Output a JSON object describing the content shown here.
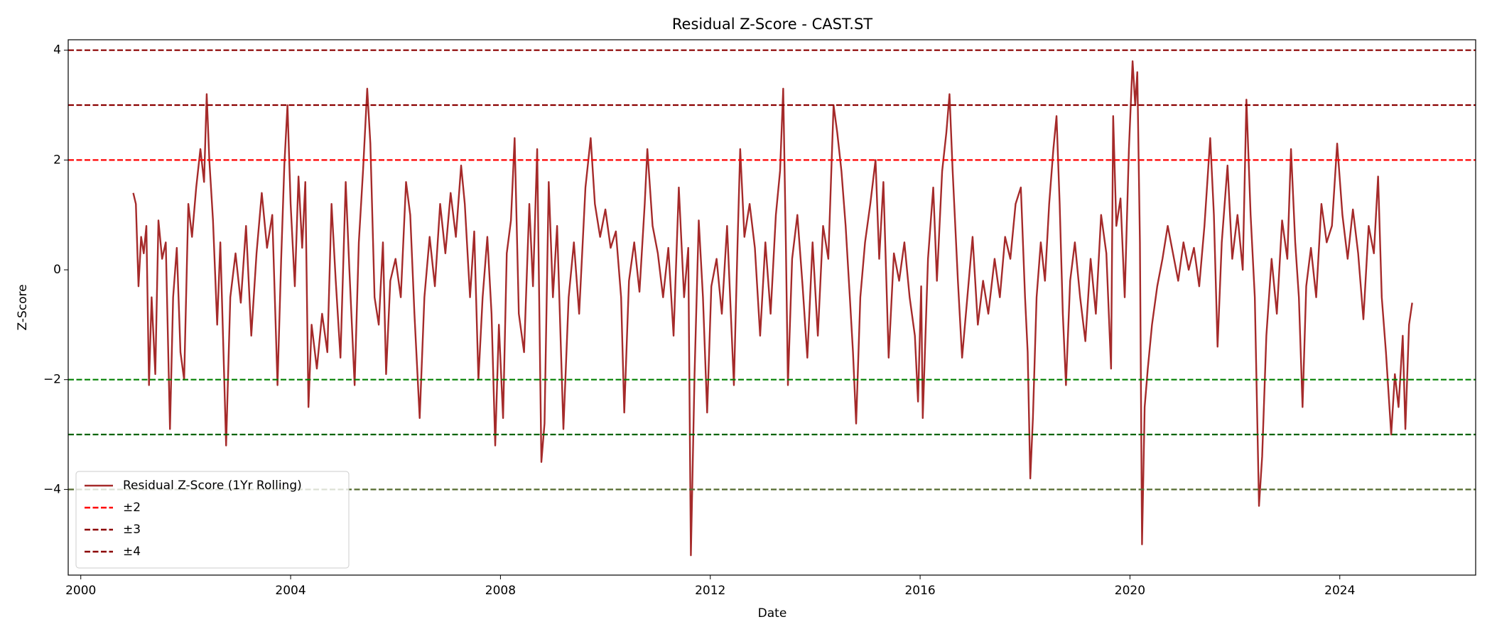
{
  "chart_data": {
    "type": "line",
    "title": "Residual Z-Score - CAST.ST",
    "x_label": "Date",
    "y_label": "Z-Score",
    "xlim": [
      1999.76,
      2026.59
    ],
    "ylim": [
      -5.56,
      4.19
    ],
    "xticks": [
      2000,
      2004,
      2008,
      2012,
      2016,
      2020,
      2024
    ],
    "yticks": [
      {
        "value": -4,
        "label": "−4"
      },
      {
        "value": -2,
        "label": "−2"
      },
      0,
      2,
      4
    ],
    "grid": false,
    "legend": "lower left",
    "x": [
      2001.0,
      2001.05,
      2001.1,
      2001.15,
      2001.2,
      2001.25,
      2001.3,
      2001.35,
      2001.42,
      2001.48,
      2001.55,
      2001.62,
      2001.7,
      2001.76,
      2001.83,
      2001.9,
      2001.97,
      2002.05,
      2002.12,
      2002.2,
      2002.28,
      2002.35,
      2002.4,
      2002.45,
      2002.52,
      2002.6,
      2002.66,
      2002.72,
      2002.77,
      2002.85,
      2002.95,
      2003.05,
      2003.15,
      2003.25,
      2003.35,
      2003.45,
      2003.55,
      2003.65,
      2003.75,
      2003.82,
      2003.88,
      2003.94,
      2004.0,
      2004.08,
      2004.15,
      2004.22,
      2004.28,
      2004.34,
      2004.4,
      2004.5,
      2004.6,
      2004.7,
      2004.78,
      2004.86,
      2004.95,
      2005.05,
      2005.12,
      2005.22,
      2005.3,
      2005.38,
      2005.46,
      2005.52,
      2005.6,
      2005.68,
      2005.76,
      2005.82,
      2005.9,
      2006.0,
      2006.1,
      2006.2,
      2006.28,
      2006.36,
      2006.46,
      2006.55,
      2006.65,
      2006.75,
      2006.85,
      2006.95,
      2007.05,
      2007.15,
      2007.25,
      2007.32,
      2007.42,
      2007.5,
      2007.58,
      2007.66,
      2007.75,
      2007.83,
      2007.9,
      2007.97,
      2008.05,
      2008.12,
      2008.2,
      2008.27,
      2008.35,
      2008.45,
      2008.55,
      2008.62,
      2008.7,
      2008.78,
      2008.84,
      2008.92,
      2009.0,
      2009.08,
      2009.2,
      2009.3,
      2009.4,
      2009.5,
      2009.62,
      2009.72,
      2009.8,
      2009.9,
      2010.0,
      2010.1,
      2010.2,
      2010.3,
      2010.36,
      2010.45,
      2010.55,
      2010.65,
      2010.75,
      2010.8,
      2010.9,
      2011.0,
      2011.1,
      2011.2,
      2011.3,
      2011.4,
      2011.5,
      2011.58,
      2011.63,
      2011.7,
      2011.78,
      2011.86,
      2011.94,
      2012.02,
      2012.12,
      2012.22,
      2012.32,
      2012.45,
      2012.52,
      2012.57,
      2012.65,
      2012.75,
      2012.85,
      2012.95,
      2013.05,
      2013.15,
      2013.25,
      2013.33,
      2013.39,
      2013.44,
      2013.48,
      2013.56,
      2013.66,
      2013.76,
      2013.85,
      2013.95,
      2014.05,
      2014.15,
      2014.25,
      2014.35,
      2014.42,
      2014.5,
      2014.58,
      2014.66,
      2014.72,
      2014.78,
      2014.86,
      2014.95,
      2015.05,
      2015.15,
      2015.22,
      2015.3,
      2015.4,
      2015.5,
      2015.6,
      2015.7,
      2015.8,
      2015.9,
      2015.96,
      2016.02,
      2016.05,
      2016.15,
      2016.25,
      2016.32,
      2016.42,
      2016.5,
      2016.56,
      2016.62,
      2016.72,
      2016.8,
      2016.9,
      2017.0,
      2017.1,
      2017.2,
      2017.3,
      2017.42,
      2017.52,
      2017.62,
      2017.72,
      2017.82,
      2017.92,
      2018.0,
      2018.05,
      2018.1,
      2018.15,
      2018.22,
      2018.3,
      2018.38,
      2018.46,
      2018.54,
      2018.6,
      2018.66,
      2018.72,
      2018.78,
      2018.86,
      2018.95,
      2019.05,
      2019.15,
      2019.25,
      2019.35,
      2019.45,
      2019.55,
      2019.64,
      2019.68,
      2019.74,
      2019.82,
      2019.9,
      2019.98,
      2020.05,
      2020.1,
      2020.14,
      2020.19,
      2020.23,
      2020.28,
      2020.34,
      2020.42,
      2020.52,
      2020.62,
      2020.72,
      2020.82,
      2020.92,
      2021.02,
      2021.12,
      2021.22,
      2021.32,
      2021.42,
      2021.53,
      2021.6,
      2021.67,
      2021.75,
      2021.86,
      2021.95,
      2022.05,
      2022.15,
      2022.22,
      2022.3,
      2022.38,
      2022.46,
      2022.52,
      2022.6,
      2022.7,
      2022.8,
      2022.9,
      2023.0,
      2023.07,
      2023.15,
      2023.22,
      2023.29,
      2023.36,
      2023.45,
      2023.55,
      2023.65,
      2023.75,
      2023.85,
      2023.95,
      2024.05,
      2024.15,
      2024.25,
      2024.35,
      2024.45,
      2024.55,
      2024.65,
      2024.73,
      2024.8,
      2024.88,
      2024.98,
      2025.05,
      2025.12,
      2025.2,
      2025.25,
      2025.32,
      2025.38
    ],
    "series": [
      {
        "name": "Residual Z-Score (1Yr Rolling)",
        "color": "#a52a2a",
        "values": [
          1.4,
          1.2,
          -0.3,
          0.6,
          0.3,
          0.8,
          -2.1,
          -0.5,
          -1.9,
          0.9,
          0.2,
          0.5,
          -2.9,
          -0.5,
          0.4,
          -1.5,
          -2.0,
          1.2,
          0.6,
          1.5,
          2.2,
          1.6,
          3.2,
          2.0,
          0.9,
          -1.0,
          0.5,
          -1.5,
          -3.2,
          -0.5,
          0.3,
          -0.6,
          0.8,
          -1.2,
          0.3,
          1.4,
          0.4,
          1.0,
          -2.1,
          0.2,
          1.9,
          3.0,
          1.2,
          -0.3,
          1.7,
          0.4,
          1.6,
          -2.5,
          -1.0,
          -1.8,
          -0.8,
          -1.5,
          1.2,
          -0.2,
          -1.6,
          1.6,
          0.0,
          -2.1,
          0.5,
          1.8,
          3.3,
          2.3,
          -0.5,
          -1.0,
          0.5,
          -1.9,
          -0.2,
          0.2,
          -0.5,
          1.6,
          1.0,
          -0.8,
          -2.7,
          -0.5,
          0.6,
          -0.3,
          1.2,
          0.3,
          1.4,
          0.6,
          1.9,
          1.2,
          -0.5,
          0.7,
          -2.0,
          -0.5,
          0.6,
          -0.8,
          -3.2,
          -1.0,
          -2.7,
          0.3,
          0.9,
          2.4,
          -0.8,
          -1.5,
          1.2,
          -0.3,
          2.2,
          -3.5,
          -2.8,
          1.6,
          -0.5,
          0.8,
          -2.9,
          -0.5,
          0.5,
          -0.8,
          1.5,
          2.4,
          1.2,
          0.6,
          1.1,
          0.4,
          0.7,
          -0.5,
          -2.6,
          -0.2,
          0.5,
          -0.4,
          1.2,
          2.2,
          0.8,
          0.3,
          -0.5,
          0.4,
          -1.2,
          1.5,
          -0.5,
          0.4,
          -5.2,
          -1.9,
          0.9,
          -0.5,
          -2.6,
          -0.3,
          0.2,
          -0.8,
          0.8,
          -2.1,
          0.5,
          2.2,
          0.6,
          1.2,
          0.4,
          -1.2,
          0.5,
          -0.8,
          1.0,
          1.8,
          3.3,
          0.5,
          -2.1,
          0.2,
          1.0,
          -0.3,
          -1.6,
          0.5,
          -1.2,
          0.8,
          0.2,
          3.0,
          2.5,
          1.8,
          0.8,
          -0.5,
          -1.5,
          -2.8,
          -0.5,
          0.5,
          1.2,
          2.0,
          0.2,
          1.6,
          -1.6,
          0.3,
          -0.2,
          0.5,
          -0.5,
          -1.2,
          -2.4,
          -0.3,
          -2.7,
          0.2,
          1.5,
          -0.2,
          1.8,
          2.5,
          3.2,
          1.8,
          -0.2,
          -1.6,
          -0.5,
          0.6,
          -1.0,
          -0.2,
          -0.8,
          0.2,
          -0.5,
          0.6,
          0.2,
          1.2,
          1.5,
          -0.5,
          -1.5,
          -3.8,
          -2.7,
          -0.5,
          0.5,
          -0.2,
          1.2,
          2.2,
          2.8,
          1.2,
          -0.8,
          -2.1,
          -0.2,
          0.5,
          -0.5,
          -1.3,
          0.2,
          -0.8,
          1.0,
          0.3,
          -1.8,
          2.8,
          0.8,
          1.3,
          -0.5,
          2.2,
          3.8,
          3.0,
          3.6,
          0.5,
          -5.0,
          -2.5,
          -1.8,
          -1.0,
          -0.3,
          0.2,
          0.8,
          0.3,
          -0.2,
          0.5,
          0.0,
          0.4,
          -0.3,
          0.8,
          2.4,
          1.0,
          -1.4,
          0.5,
          1.9,
          0.2,
          1.0,
          0.0,
          3.1,
          1.0,
          -0.5,
          -4.3,
          -3.4,
          -1.2,
          0.2,
          -0.8,
          0.9,
          0.2,
          2.2,
          0.5,
          -0.5,
          -2.5,
          -0.3,
          0.4,
          -0.5,
          1.2,
          0.5,
          0.8,
          2.3,
          1.0,
          0.2,
          1.1,
          0.3,
          -0.9,
          0.8,
          0.3,
          1.7,
          -0.5,
          -1.5,
          -3.0,
          -1.9,
          -2.5,
          -1.2,
          -2.9,
          -1.0,
          -0.6
        ]
      }
    ],
    "thresholds": [
      {
        "name": "±2",
        "upper": 2,
        "lower": -2,
        "upper_color": "#ff0000",
        "lower_color": "#008000"
      },
      {
        "name": "±3",
        "upper": 3,
        "lower": -3,
        "upper_color": "#8b0000",
        "lower_color": "#006400"
      },
      {
        "name": "±4",
        "upper": 4,
        "lower": -4,
        "upper_color": "#8b0000",
        "lower_color": "#556b2f"
      }
    ]
  }
}
